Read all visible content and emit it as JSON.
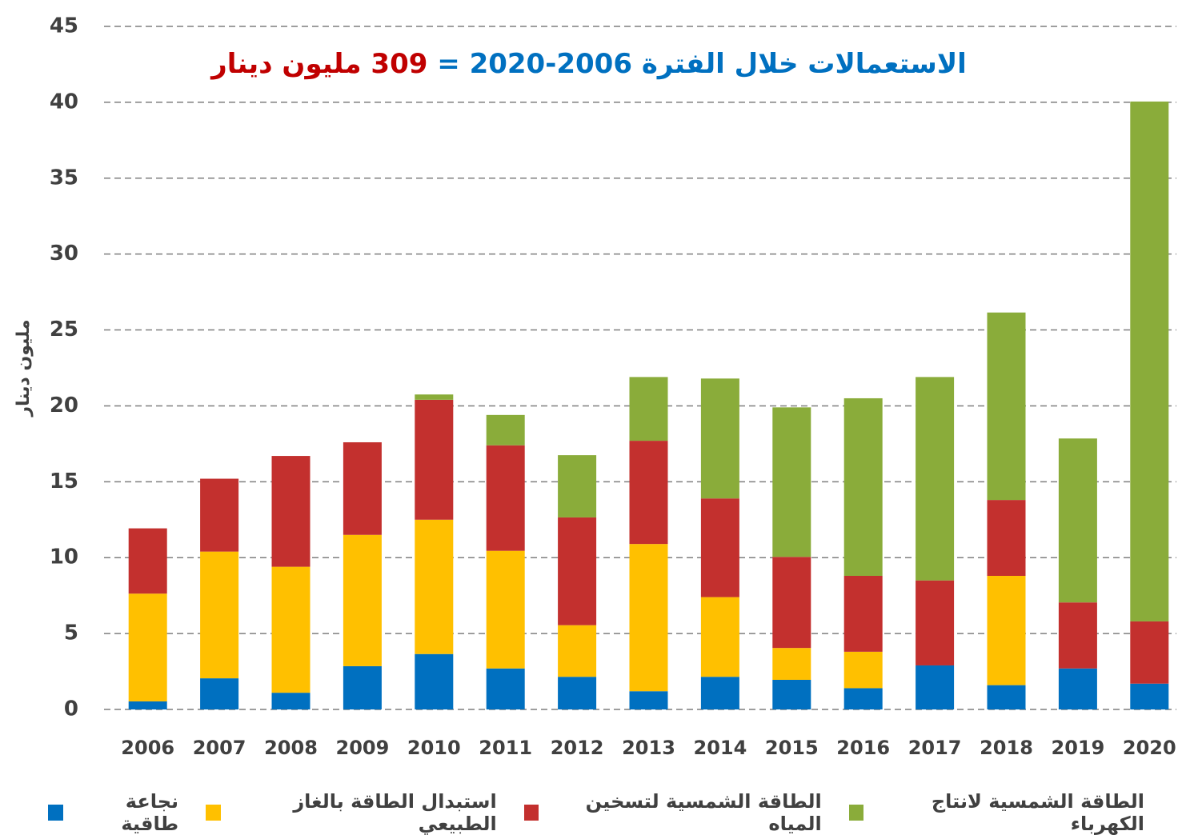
{
  "chart_data": {
    "type": "stacked_bar",
    "title_parts": [
      "الاستعمالات خلال الفترة 2006-2020 =",
      "309 مليون دينار"
    ],
    "title_colors": [
      "#0070c0",
      "#c00000"
    ],
    "y_label": "مليون دينار",
    "categories": [
      "2006",
      "2007",
      "2008",
      "2009",
      "2010",
      "2011",
      "2012",
      "2013",
      "2014",
      "2015",
      "2016",
      "2017",
      "2018",
      "2019",
      "2020"
    ],
    "series": [
      {
        "name": "نجاعة طاقية",
        "color": "#0070c0",
        "values": [
          0.53,
          2.05,
          1.1,
          2.85,
          3.65,
          2.7,
          2.15,
          1.2,
          2.15,
          1.95,
          1.4,
          2.9,
          1.6,
          2.7,
          1.7
        ]
      },
      {
        "name": "استبدال الطاقة بالغاز الطبيعي",
        "color": "#ffc000",
        "values": [
          7.1,
          8.35,
          8.3,
          8.65,
          8.85,
          7.75,
          3.4,
          9.7,
          5.25,
          2.1,
          2.4,
          0,
          7.2,
          0,
          0
        ]
      },
      {
        "name": "الطاقة الشمسية لتسخين المياه",
        "color": "#c3302e",
        "values": [
          4.3,
          4.8,
          7.3,
          6.1,
          7.9,
          6.95,
          7.1,
          6.8,
          6.5,
          6.0,
          5.0,
          5.6,
          5.0,
          4.35,
          4.1
        ]
      },
      {
        "name": "الطاقة الشمسية لانتاج الكهرباء",
        "color": "#8aac3a",
        "values": [
          0,
          0,
          0,
          0,
          0.35,
          2.0,
          4.1,
          4.2,
          7.9,
          9.85,
          11.7,
          13.4,
          12.35,
          10.8,
          34.25
        ]
      }
    ],
    "ylim": [
      0,
      45
    ],
    "yticks": [
      0,
      5,
      10,
      15,
      20,
      25,
      30,
      35,
      40,
      45
    ],
    "grid": true
  }
}
